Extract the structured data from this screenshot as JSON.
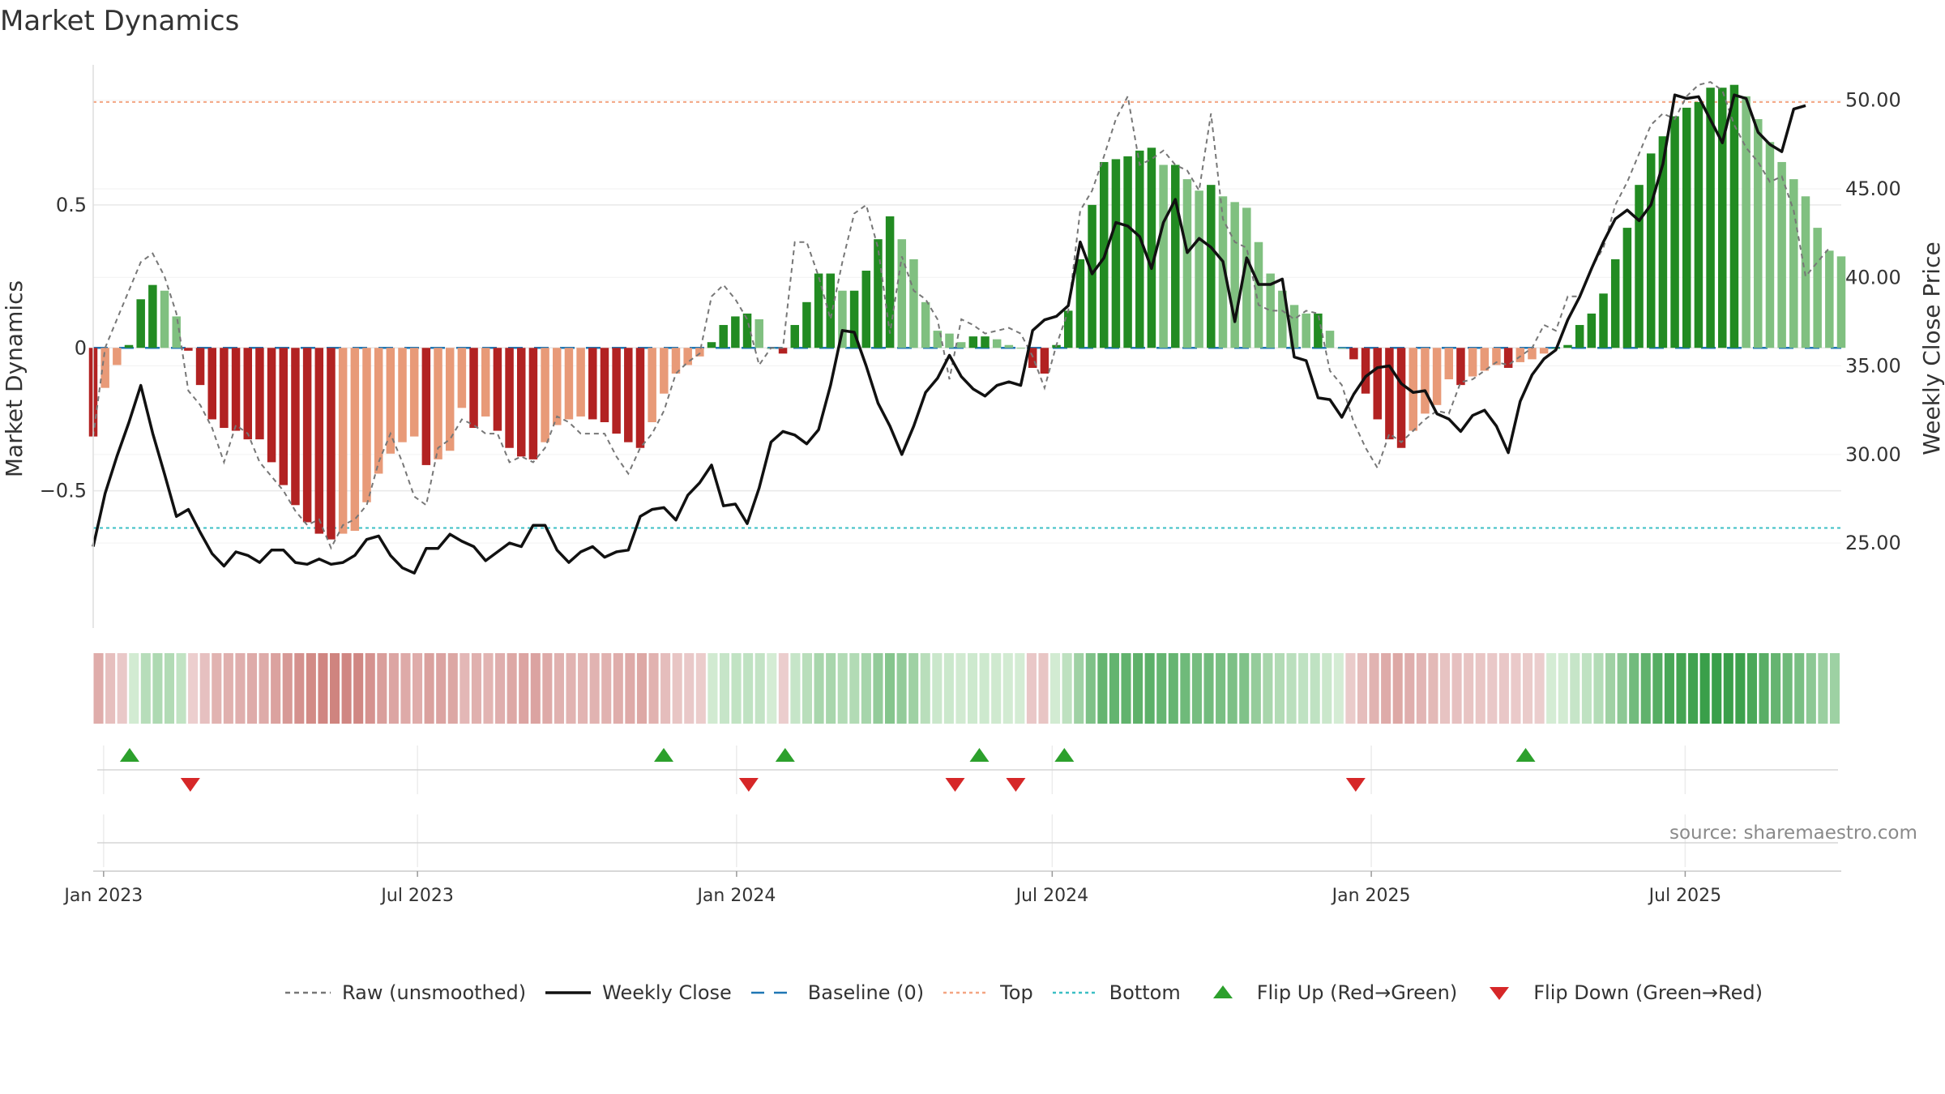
{
  "title": "Market Dynamics",
  "source": "source: sharemaestro.com",
  "colors": {
    "strong_green": "#228b22",
    "light_green": "#80c080",
    "strong_red": "#b22222",
    "light_red": "#e89a78",
    "top_line": "#f4a582",
    "bottom_line": "#3bbfc4",
    "baseline": "#1f77b4",
    "raw": "#777777",
    "close": "#111111",
    "flip_up": "#2ca02c",
    "flip_down": "#d62728"
  },
  "chart_data": {
    "type": "bar",
    "title": "Market Dynamics",
    "ylabel": "Market Dynamics",
    "ylabel_right": "Weekly Close Price",
    "ylim": [
      -0.98,
      0.99
    ],
    "ylim_right": [
      20.2,
      52.0
    ],
    "yticks": [
      0.5,
      0,
      -0.5
    ],
    "ytick_labels": [
      "0.5",
      "0",
      "−0.5"
    ],
    "yticks_right": [
      50,
      45,
      40,
      35,
      30,
      25
    ],
    "ytick_labels_right": [
      "50.00",
      "45.00",
      "40.00",
      "35.00",
      "30.00",
      "25.00"
    ],
    "x_start": "2022-12-26",
    "x_end": "2025-09-29",
    "x_step_weeks": 1,
    "xticks": [
      "2023-01-01",
      "2023-07-01",
      "2024-01-01",
      "2024-07-01",
      "2025-01-01",
      "2025-07-01"
    ],
    "xtick_labels": [
      "Jan 2023",
      "Jul 2023",
      "Jan 2024",
      "Jul 2024",
      "Jan 2025",
      "Jul 2025"
    ],
    "top_level": 0.86,
    "bottom_level": -0.63,
    "baseline_level": 0,
    "grid": true,
    "series": [
      {
        "name": "Market Dynamics",
        "type": "bar",
        "values": [
          -0.31,
          -0.14,
          -0.06,
          0.01,
          0.17,
          0.22,
          0.2,
          0.11,
          -0.01,
          -0.13,
          -0.25,
          -0.28,
          -0.29,
          -0.32,
          -0.32,
          -0.4,
          -0.48,
          -0.55,
          -0.61,
          -0.65,
          -0.67,
          -0.65,
          -0.64,
          -0.54,
          -0.44,
          -0.37,
          -0.33,
          -0.31,
          -0.41,
          -0.39,
          -0.36,
          -0.21,
          -0.28,
          -0.24,
          -0.29,
          -0.35,
          -0.38,
          -0.39,
          -0.33,
          -0.27,
          -0.25,
          -0.24,
          -0.25,
          -0.26,
          -0.3,
          -0.33,
          -0.35,
          -0.26,
          -0.16,
          -0.09,
          -0.06,
          -0.03,
          0.02,
          0.08,
          0.11,
          0.12,
          0.1,
          0,
          -0.02,
          0.08,
          0.16,
          0.26,
          0.26,
          0.2,
          0.2,
          0.27,
          0.38,
          0.46,
          0.38,
          0.31,
          0.16,
          0.06,
          0.05,
          0.02,
          0.04,
          0.04,
          0.03,
          0.01,
          0,
          -0.07,
          -0.09,
          0.01,
          0.13,
          0.31,
          0.5,
          0.65,
          0.66,
          0.67,
          0.69,
          0.7,
          0.64,
          0.64,
          0.59,
          0.55,
          0.57,
          0.53,
          0.51,
          0.49,
          0.37,
          0.26,
          0.2,
          0.15,
          0.12,
          0.12,
          0.06,
          0,
          -0.04,
          -0.16,
          -0.25,
          -0.32,
          -0.35,
          -0.29,
          -0.23,
          -0.2,
          -0.11,
          -0.13,
          -0.1,
          -0.08,
          -0.06,
          -0.07,
          -0.05,
          -0.04,
          -0.02,
          0,
          0.01,
          0.08,
          0.12,
          0.19,
          0.31,
          0.42,
          0.57,
          0.68,
          0.74,
          0.81,
          0.84,
          0.86,
          0.91,
          0.91,
          0.92,
          0.88,
          0.8,
          0.72,
          0.65,
          0.59,
          0.53,
          0.42,
          0.34,
          0.32
        ]
      },
      {
        "name": "Raw (unsmoothed)",
        "type": "line",
        "values": [
          -0.31,
          0.0,
          0.1,
          0.2,
          0.3,
          0.33,
          0.25,
          0.12,
          -0.15,
          -0.2,
          -0.28,
          -0.4,
          -0.27,
          -0.3,
          -0.4,
          -0.45,
          -0.5,
          -0.57,
          -0.62,
          -0.6,
          -0.7,
          -0.62,
          -0.6,
          -0.55,
          -0.4,
          -0.3,
          -0.4,
          -0.52,
          -0.55,
          -0.35,
          -0.32,
          -0.25,
          -0.27,
          -0.3,
          -0.3,
          -0.4,
          -0.38,
          -0.4,
          -0.35,
          -0.24,
          -0.26,
          -0.3,
          -0.3,
          -0.3,
          -0.38,
          -0.44,
          -0.35,
          -0.3,
          -0.22,
          -0.09,
          -0.05,
          -0.02,
          0.18,
          0.22,
          0.17,
          0.1,
          -0.06,
          0.0,
          0.0,
          0.37,
          0.37,
          0.25,
          0.1,
          0.3,
          0.47,
          0.5,
          0.35,
          0.05,
          0.32,
          0.2,
          0.17,
          0.1,
          -0.11,
          0.1,
          0.08,
          0.05,
          0.06,
          0.07,
          0.05,
          -0.03,
          -0.14,
          0.01,
          0.13,
          0.48,
          0.55,
          0.67,
          0.8,
          0.88,
          0.64,
          0.66,
          0.69,
          0.64,
          0.62,
          0.55,
          0.82,
          0.45,
          0.37,
          0.35,
          0.15,
          0.13,
          0.13,
          0.1,
          0.13,
          0.12,
          -0.08,
          -0.13,
          -0.26,
          -0.35,
          -0.42,
          -0.3,
          -0.33,
          -0.29,
          -0.25,
          -0.22,
          -0.23,
          -0.12,
          -0.11,
          -0.08,
          -0.05,
          -0.06,
          -0.03,
          0.0,
          0.08,
          0.06,
          0.18,
          0.18,
          0.28,
          0.35,
          0.5,
          0.58,
          0.68,
          0.78,
          0.82,
          0.8,
          0.88,
          0.92,
          0.93,
          0.9,
          0.78,
          0.7,
          0.65,
          0.58,
          0.6,
          0.48,
          0.25,
          0.3,
          0.35
        ]
      },
      {
        "name": "Weekly Close",
        "type": "line",
        "axis": "right",
        "values": [
          24.8,
          27.8,
          29.9,
          31.8,
          33.9,
          31.2,
          28.9,
          26.5,
          26.9,
          25.6,
          24.4,
          23.7,
          24.5,
          24.3,
          23.9,
          24.6,
          24.6,
          23.9,
          23.8,
          24.1,
          23.8,
          23.9,
          24.3,
          25.2,
          25.4,
          24.3,
          23.6,
          23.3,
          24.7,
          24.7,
          25.5,
          25.1,
          24.8,
          24.0,
          24.5,
          25.0,
          24.8,
          26.0,
          26.0,
          24.6,
          23.9,
          24.5,
          24.8,
          24.2,
          24.5,
          24.6,
          26.5,
          26.9,
          27.0,
          26.3,
          27.7,
          28.4,
          29.4,
          27.1,
          27.2,
          26.1,
          28.1,
          30.7,
          31.3,
          31.1,
          30.6,
          31.4,
          33.9,
          37.0,
          36.9,
          35.0,
          32.9,
          31.6,
          30.0,
          31.6,
          33.5,
          34.3,
          35.6,
          34.4,
          33.7,
          33.3,
          33.9,
          34.1,
          33.9,
          37.0,
          37.6,
          37.8,
          38.4,
          42.0,
          40.2,
          41.1,
          43.1,
          42.9,
          42.3,
          40.5,
          43.1,
          44.4,
          41.4,
          42.2,
          41.7,
          40.9,
          37.5,
          41.1,
          39.6,
          39.6,
          39.9,
          35.5,
          35.3,
          33.2,
          33.1,
          32.1,
          33.4,
          34.4,
          34.9,
          35.0,
          34.0,
          33.5,
          33.6,
          32.3,
          32.0,
          31.3,
          32.2,
          32.5,
          31.6,
          30.1,
          33.0,
          34.5,
          35.4,
          35.9,
          37.6,
          38.9,
          40.5,
          42.0,
          43.3,
          43.8,
          43.2,
          44.1,
          46.4,
          50.3,
          50.1,
          50.2,
          48.9,
          47.6,
          50.3,
          50.1,
          48.2,
          47.5,
          47.1,
          49.5,
          49.7
        ]
      },
      {
        "name": "Flip Up (Red→Green)",
        "type": "scatter",
        "marker": "triangle-up",
        "x": [
          "2023-01-16",
          "2023-11-20",
          "2024-01-29",
          "2024-05-20",
          "2024-07-08",
          "2025-03-31"
        ]
      },
      {
        "name": "Flip Down (Green→Red)",
        "type": "scatter",
        "marker": "triangle-down",
        "x": [
          "2023-02-20",
          "2024-01-08",
          "2024-05-06",
          "2024-06-10",
          "2024-12-23"
        ]
      }
    ]
  },
  "legend": [
    {
      "label": "Raw (unsmoothed)",
      "kind": "dash",
      "color": "#777777"
    },
    {
      "label": "Weekly Close",
      "kind": "line",
      "color": "#111111"
    },
    {
      "label": "Baseline (0)",
      "kind": "longdash",
      "color": "#1f77b4"
    },
    {
      "label": "Top",
      "kind": "dot",
      "color": "#f4a582"
    },
    {
      "label": "Bottom",
      "kind": "dot",
      "color": "#3bbfc4"
    },
    {
      "label": "Flip Up (Red→Green)",
      "kind": "triangle-up",
      "color": "#2ca02c"
    },
    {
      "label": "Flip Down (Green→Red)",
      "kind": "triangle-down",
      "color": "#d62728"
    }
  ]
}
